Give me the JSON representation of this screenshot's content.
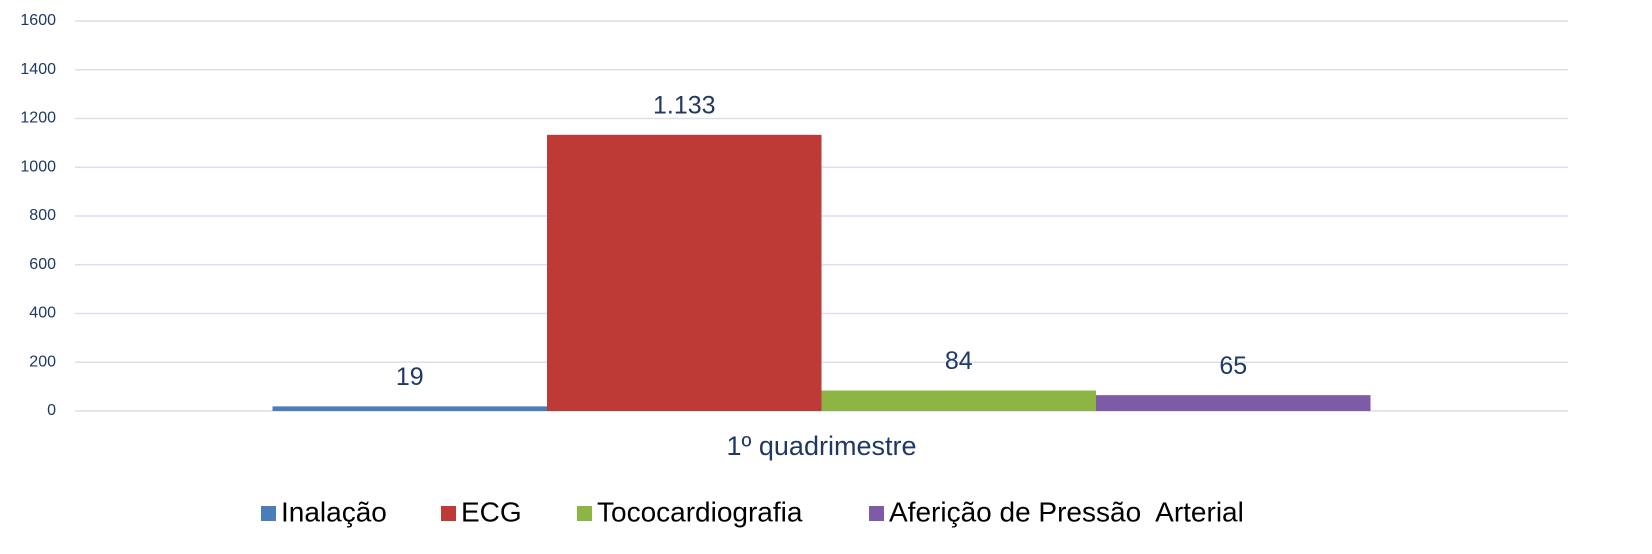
{
  "chart_data": {
    "type": "bar",
    "categories": [
      "1º quadrimestre"
    ],
    "series": [
      {
        "name": "Inalação",
        "color": "#4a7ebb",
        "values": [
          19
        ]
      },
      {
        "name": "ECG",
        "color": "#be3a36",
        "values": [
          1133
        ],
        "value_labels": [
          "1.133"
        ]
      },
      {
        "name": "Tococardiografia",
        "color": "#8db543",
        "values": [
          84
        ]
      },
      {
        "name": "Aferição de Pressão  Arterial",
        "color": "#7d5ba6",
        "values": [
          65
        ]
      }
    ],
    "ylim": [
      0,
      1600
    ],
    "yticks": [
      0,
      200,
      400,
      600,
      800,
      1000,
      1200,
      1400,
      1600
    ],
    "grid": true,
    "legend": "bottom"
  }
}
